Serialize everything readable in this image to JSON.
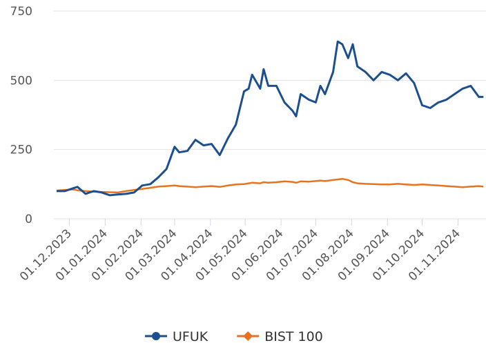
{
  "chart_data": {
    "type": "line",
    "x": [
      "20.11.2023",
      "27.11.2023",
      "04.12.2023",
      "08.12.2023",
      "15.12.2023",
      "22.12.2023",
      "29.12.2023",
      "05.01.2024",
      "12.01.2024",
      "19.01.2024",
      "26.01.2024",
      "02.02.2024",
      "09.02.2024",
      "16.02.2024",
      "23.02.2024",
      "01.03.2024",
      "05.03.2024",
      "12.03.2024",
      "19.03.2024",
      "26.03.2024",
      "02.04.2024",
      "09.04.2024",
      "16.04.2024",
      "23.04.2024",
      "30.04.2024",
      "04.05.2024",
      "07.05.2024",
      "14.05.2024",
      "17.05.2024",
      "21.05.2024",
      "28.05.2024",
      "04.06.2024",
      "11.06.2024",
      "14.06.2024",
      "18.06.2024",
      "25.06.2024",
      "01.07.2024",
      "05.07.2024",
      "09.07.2024",
      "16.07.2024",
      "20.07.2024",
      "24.07.2024",
      "29.07.2024",
      "02.08.2024",
      "06.08.2024",
      "13.08.2024",
      "20.08.2024",
      "27.08.2024",
      "03.09.2024",
      "10.09.2024",
      "17.09.2024",
      "24.09.2024",
      "01.10.2024",
      "08.10.2024",
      "15.10.2024",
      "22.10.2024",
      "29.10.2024",
      "05.11.2024",
      "12.11.2024",
      "19.11.2024",
      "23.11.2024"
    ],
    "series": [
      {
        "name": "UFUK",
        "color": "#1c4f8f",
        "values": [
          100,
          100,
          110,
          115,
          90,
          100,
          95,
          85,
          88,
          90,
          95,
          120,
          125,
          150,
          180,
          260,
          240,
          245,
          285,
          265,
          270,
          230,
          290,
          340,
          460,
          470,
          520,
          470,
          540,
          480,
          480,
          420,
          390,
          370,
          450,
          430,
          420,
          480,
          450,
          530,
          640,
          630,
          580,
          630,
          550,
          530,
          500,
          530,
          520,
          500,
          525,
          490,
          410,
          400,
          420,
          430,
          450,
          470,
          480,
          440,
          440
        ]
      },
      {
        "name": "BIST 100",
        "color": "#e8731e",
        "values": [
          102,
          104,
          106,
          103,
          100,
          98,
          97,
          96,
          95,
          100,
          104,
          108,
          112,
          116,
          118,
          120,
          118,
          116,
          114,
          116,
          118,
          115,
          120,
          124,
          125,
          128,
          130,
          128,
          132,
          130,
          132,
          135,
          133,
          130,
          135,
          134,
          136,
          138,
          136,
          140,
          142,
          144,
          140,
          132,
          128,
          126,
          125,
          124,
          124,
          126,
          124,
          122,
          124,
          122,
          120,
          118,
          116,
          114,
          116,
          118,
          116
        ]
      }
    ],
    "xlim": [
      "20.11.2023",
      "24.11.2024"
    ],
    "xticks": [
      "01.12.2023",
      "01.01.2024",
      "01.02.2024",
      "01.03.2024",
      "01.04.2024",
      "01.05.2024",
      "01.06.2024",
      "01.07.2024",
      "01.08.2024",
      "01.09.2024",
      "01.10.2024",
      "01.11.2024"
    ],
    "ylim": [
      0,
      750
    ],
    "yticks": [
      0,
      250,
      500,
      750
    ],
    "grid": true
  }
}
